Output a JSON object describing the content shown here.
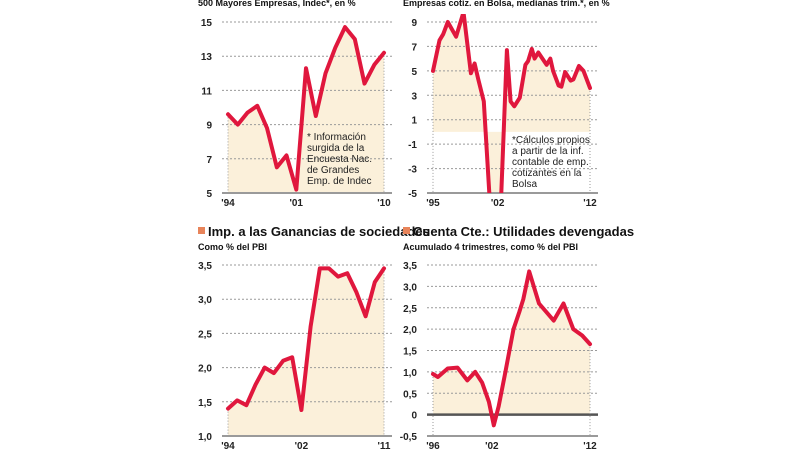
{
  "colors": {
    "line": "#e0173d",
    "fill": "#fbf0da",
    "grid": "#9a9a9a",
    "marker": "#e8845a",
    "zero": "#555555"
  },
  "chart_data": [
    {
      "type": "area",
      "title": "",
      "subtitle": "500 Mayores Empresas, Indec*, en %",
      "x": [
        1994,
        1995,
        1996,
        1997,
        1998,
        1999,
        2000,
        2001,
        2002,
        2003,
        2004,
        2005,
        2006,
        2007,
        2008,
        2009,
        2010
      ],
      "values": [
        9.6,
        9.0,
        9.7,
        10.1,
        8.8,
        6.5,
        7.2,
        5.2,
        12.3,
        9.5,
        12.0,
        13.5,
        14.7,
        14.0,
        11.4,
        12.5,
        13.2
      ],
      "ylim": [
        5,
        15
      ],
      "yticks": [
        "5",
        "7",
        "9",
        "11",
        "13",
        "15"
      ],
      "xticks": [
        "'94",
        "'01",
        "'10"
      ],
      "xtick_values": [
        1994,
        2001,
        2010
      ],
      "note": [
        "* Información",
        "surgida de la",
        "Encuesta Nac.",
        "de Grandes",
        "Emp. de Indec"
      ],
      "grid": true
    },
    {
      "type": "area",
      "title": "",
      "subtitle": "Empresas cotiz. en Bolsa, medianas trim.*, en %",
      "x": [
        1995,
        1995.7,
        1996.1,
        1996.6,
        1997.5,
        1998.3,
        1999.1,
        1999.5,
        1999.9,
        2000.5,
        2001.1,
        2001.7,
        2002.4,
        2003.0,
        2003.4,
        2003.8,
        2004.4,
        2005.0,
        2005.3,
        2005.7,
        2006.0,
        2006.4,
        2007.3,
        2007.7,
        2008.0,
        2008.6,
        2008.9,
        2009.3,
        2009.9,
        2010.2,
        2010.8,
        2011.3,
        2012.0
      ],
      "values": [
        5.0,
        7.5,
        8.0,
        9.0,
        7.8,
        9.8,
        4.8,
        5.6,
        4.3,
        2.5,
        -5.0,
        -9.0,
        -5.0,
        6.7,
        2.5,
        2.1,
        2.8,
        5.5,
        5.8,
        6.8,
        6.0,
        6.5,
        5.5,
        6.0,
        5.0,
        3.8,
        3.7,
        4.9,
        4.2,
        4.3,
        5.4,
        5.0,
        3.6
      ],
      "ylim": [
        -5,
        9
      ],
      "yticks": [
        "-5",
        "-3",
        "-1",
        "1",
        "3",
        "5",
        "7",
        "9"
      ],
      "xticks": [
        "'95",
        "'02",
        "'12"
      ],
      "xtick_values": [
        1995,
        2002,
        2012
      ],
      "note": [
        "*Cálculos propios",
        "a partir de la inf.",
        "contable de emp.",
        "cotizantes en la",
        "Bolsa"
      ],
      "grid": true
    },
    {
      "type": "area",
      "title": "Imp. a las Ganancias de sociedades",
      "subtitle": "Como % del PBI",
      "x": [
        1994,
        1995,
        1996,
        1997,
        1998,
        1999,
        2000,
        2001,
        2002,
        2003,
        2004,
        2005,
        2006,
        2007,
        2008,
        2009,
        2010,
        2011
      ],
      "values": [
        1.4,
        1.52,
        1.45,
        1.75,
        2.0,
        1.92,
        2.1,
        2.15,
        1.38,
        2.6,
        3.45,
        3.45,
        3.33,
        3.38,
        3.1,
        2.75,
        3.25,
        3.45
      ],
      "ylim": [
        1.0,
        3.5
      ],
      "yticks": [
        "1,0",
        "1,5",
        "2,0",
        "2,5",
        "3,0",
        "3,5"
      ],
      "xticks": [
        "'94",
        "'02",
        "'11"
      ],
      "xtick_values": [
        1994,
        2002,
        2011
      ],
      "grid": true
    },
    {
      "type": "area",
      "title": "Cuenta Cte.: Utilidades devengadas",
      "subtitle": "Acumulado 4 trimestres, como % del PBI",
      "x": [
        1996,
        1996.5,
        1997.5,
        1998.5,
        1999.5,
        2000.3,
        2001.0,
        2001.7,
        2002.2,
        2002.7,
        2003.3,
        2004.2,
        2004.8,
        2005.2,
        2005.8,
        2006.8,
        2008.3,
        2009.3,
        2010.3,
        2011.2,
        2012.0
      ],
      "values": [
        0.95,
        0.88,
        1.08,
        1.1,
        0.8,
        1.0,
        0.75,
        0.3,
        -0.25,
        0.2,
        0.9,
        2.0,
        2.4,
        2.7,
        3.35,
        2.6,
        2.2,
        2.6,
        2.0,
        1.85,
        1.65
      ],
      "ylim": [
        -0.5,
        3.5
      ],
      "yticks": [
        "-0,5",
        "0",
        "0,5",
        "1,0",
        "1,5",
        "2,0",
        "2,5",
        "3,0",
        "3,5"
      ],
      "xticks": [
        "'96",
        "'02",
        "'12"
      ],
      "xtick_values": [
        1996,
        2002,
        2012
      ],
      "grid": true
    }
  ]
}
